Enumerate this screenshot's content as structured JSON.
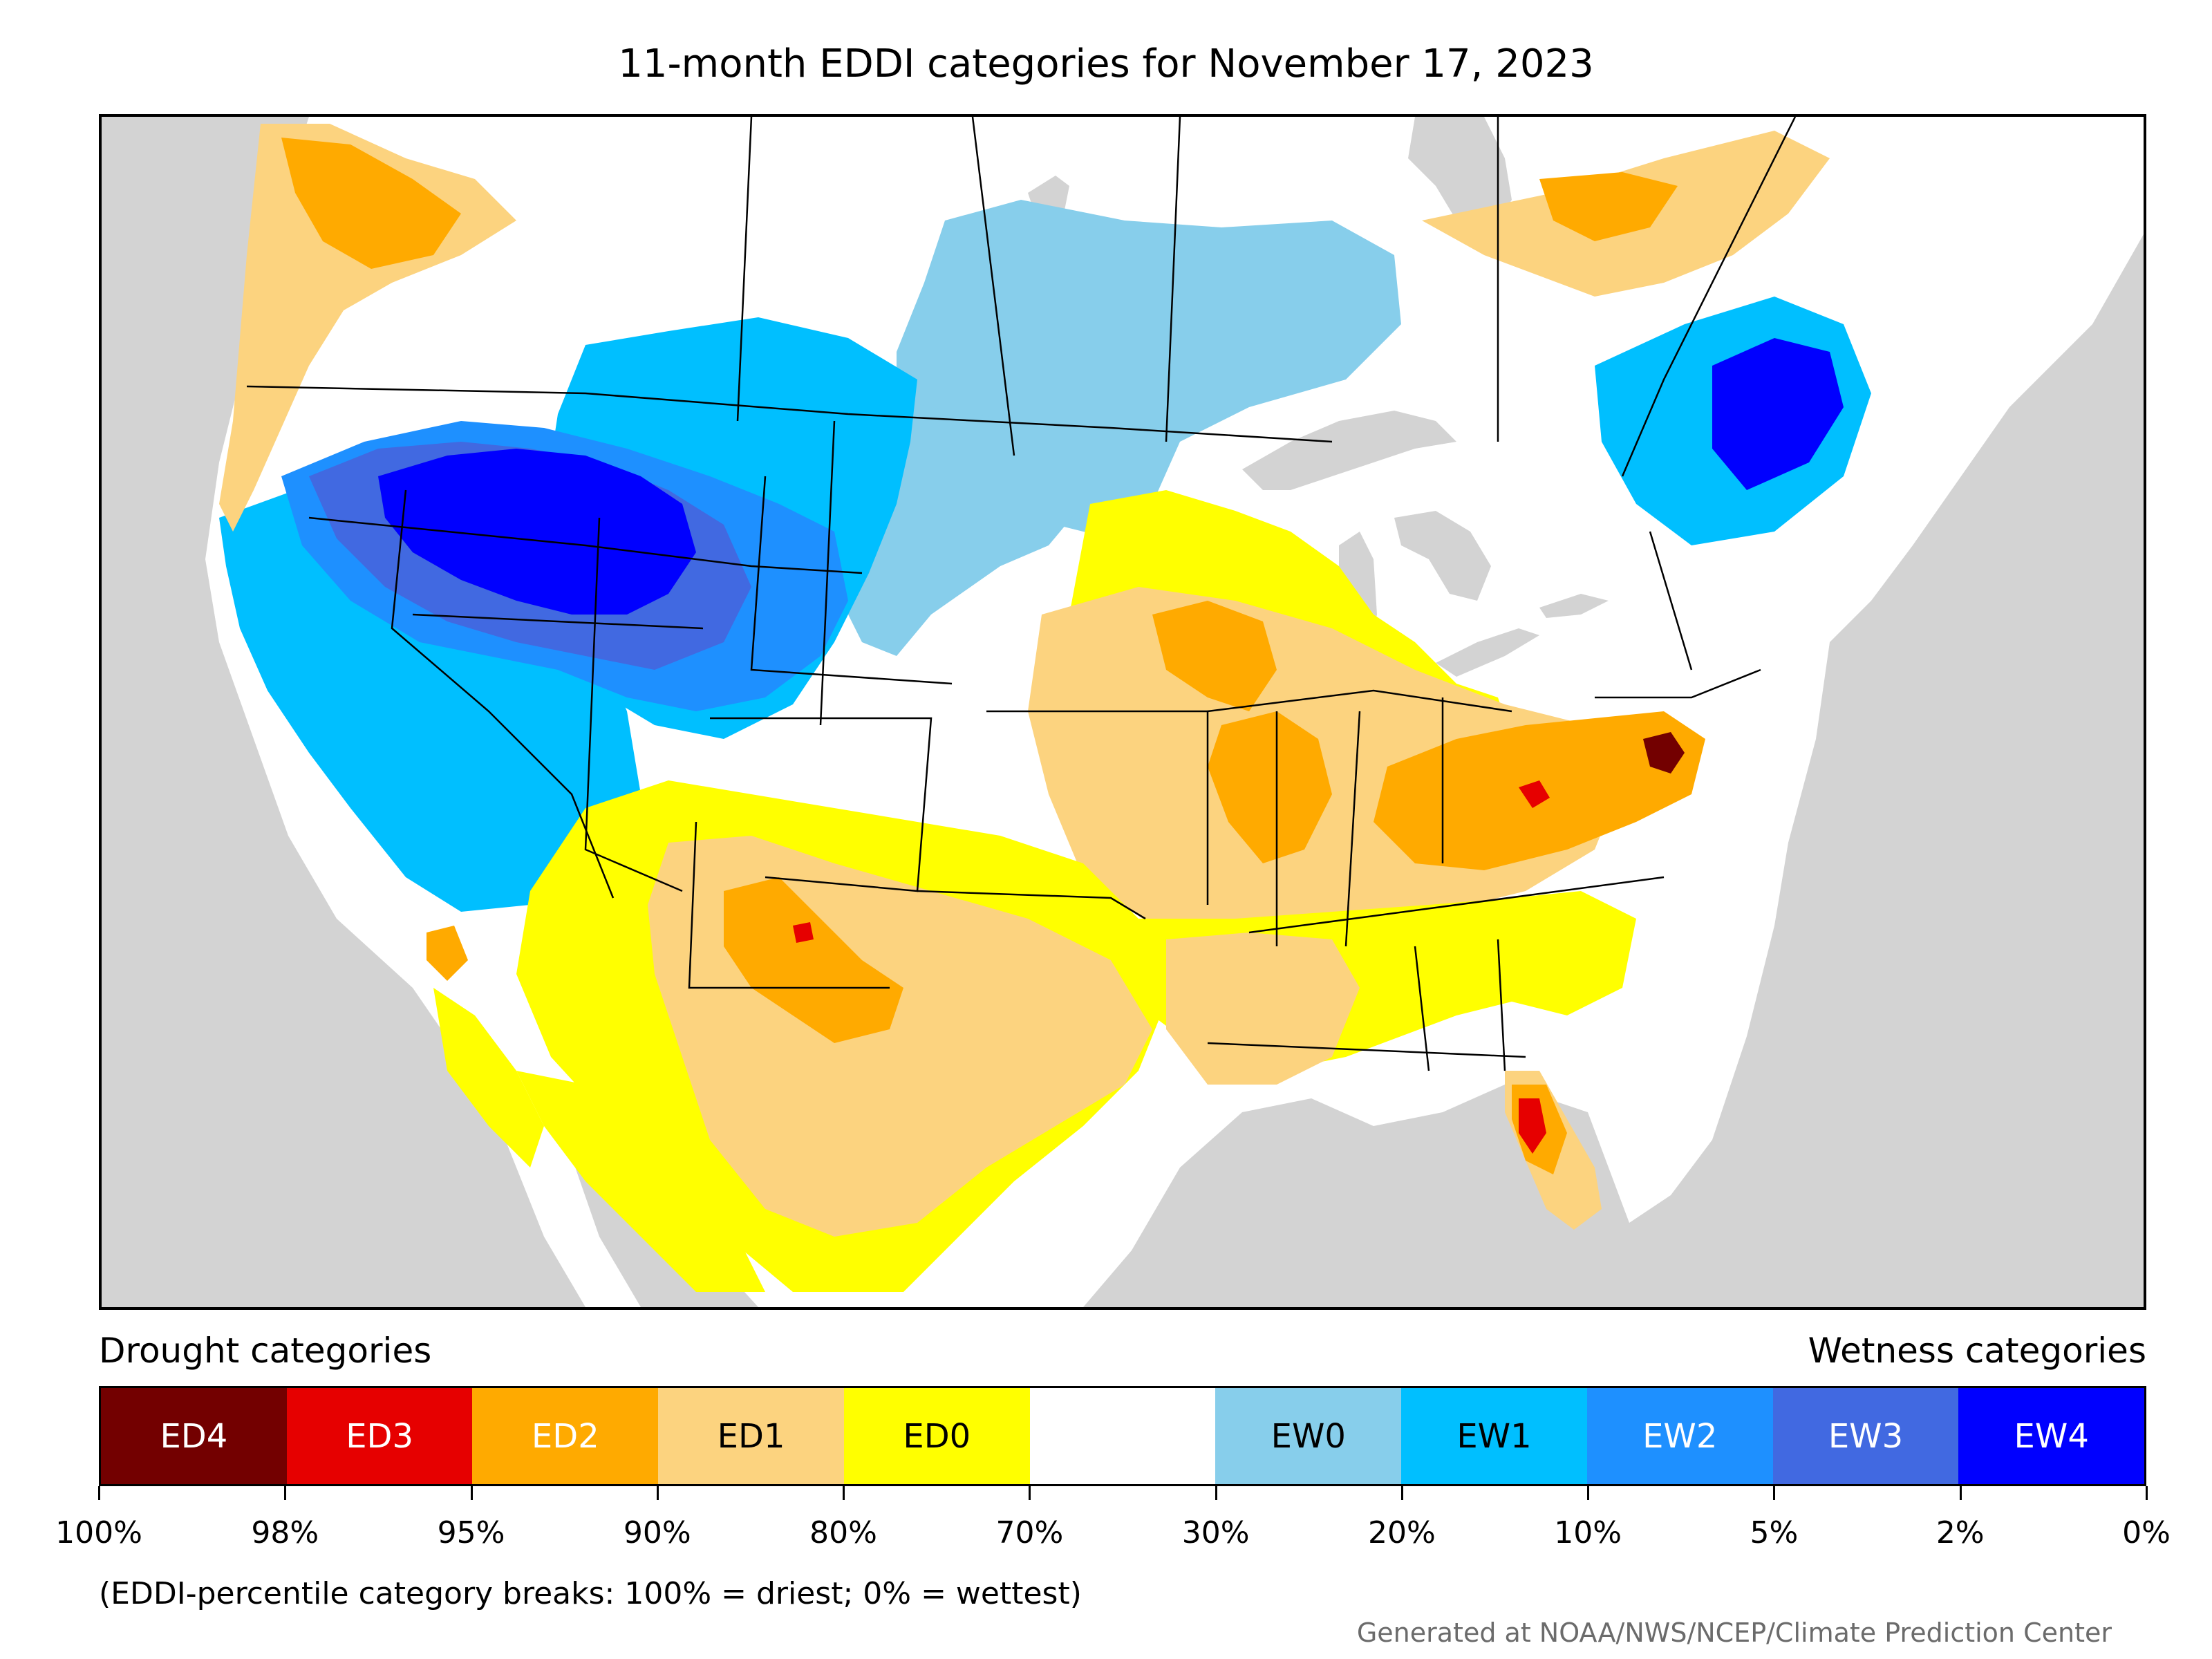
{
  "title": "11-month EDDI categories for November 17, 2023",
  "legend": {
    "drought_heading": "Drought categories",
    "wetness_heading": "Wetness categories",
    "categories": [
      {
        "label": "ED4",
        "color": "#730000",
        "text_color": "#ffffff"
      },
      {
        "label": "ED3",
        "color": "#e60000",
        "text_color": "#ffffff"
      },
      {
        "label": "ED2",
        "color": "#ffaa00",
        "text_color": "#ffffff"
      },
      {
        "label": "ED1",
        "color": "#fcd37f",
        "text_color": "#000000"
      },
      {
        "label": "ED0",
        "color": "#ffff00",
        "text_color": "#000000"
      },
      {
        "label": "",
        "color": "#ffffff",
        "text_color": "#000000"
      },
      {
        "label": "EW0",
        "color": "#87ceeb",
        "text_color": "#000000"
      },
      {
        "label": "EW1",
        "color": "#00bfff",
        "text_color": "#000000"
      },
      {
        "label": "EW2",
        "color": "#1e90ff",
        "text_color": "#ffffff"
      },
      {
        "label": "EW3",
        "color": "#4169e1",
        "text_color": "#ffffff"
      },
      {
        "label": "EW4",
        "color": "#0000ff",
        "text_color": "#ffffff"
      }
    ],
    "tick_labels": [
      "100%",
      "98%",
      "95%",
      "90%",
      "80%",
      "70%",
      "30%",
      "20%",
      "10%",
      "5%",
      "2%",
      "0%"
    ],
    "note": "(EDDI-percentile category breaks: 100% = driest; 0% = wettest)"
  },
  "credit": "Generated at NOAA/NWS/NCEP/Climate Prediction Center",
  "map": {
    "background_color": "#d3d3d3",
    "land_color": "#ffffff",
    "regions": [
      {
        "name": "pacific-northwest-coast",
        "category": "ED1"
      },
      {
        "name": "british-columbia-interior",
        "category": "ED2"
      },
      {
        "name": "great-basin-northern-rockies",
        "category": "EW4"
      },
      {
        "name": "california-nevada",
        "category": "EW1"
      },
      {
        "name": "montana-wyoming-plains",
        "category": "EW1"
      },
      {
        "name": "northern-plains",
        "category": "EW0"
      },
      {
        "name": "canadian-prairies",
        "category": "EW0"
      },
      {
        "name": "quebec-new-england",
        "category": "EW3"
      },
      {
        "name": "ontario-north",
        "category": "ED2"
      },
      {
        "name": "upper-midwest",
        "category": "ED0"
      },
      {
        "name": "corn-belt-ohio-valley",
        "category": "ED1"
      },
      {
        "name": "kentucky-virginia",
        "category": "ED2"
      },
      {
        "name": "virginia-hotspot",
        "category": "ED4"
      },
      {
        "name": "southern-plains-texas",
        "category": "ED1"
      },
      {
        "name": "new-mexico-west-texas",
        "category": "ED2"
      },
      {
        "name": "southeast-deep-south",
        "category": "ED0"
      },
      {
        "name": "florida-peninsula",
        "category": "ED2"
      },
      {
        "name": "florida-hotspot",
        "category": "ED3"
      },
      {
        "name": "northern-mexico",
        "category": "ED0"
      }
    ]
  }
}
